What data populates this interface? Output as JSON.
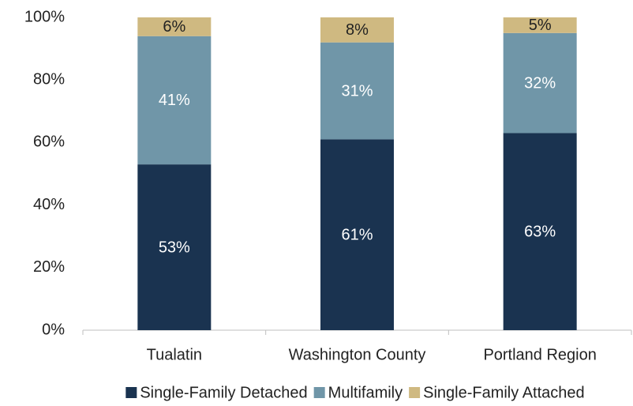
{
  "chart_data": {
    "type": "stacked_bar",
    "categories": [
      "Tualatin",
      "Washington County",
      "Portland Region"
    ],
    "series": [
      {
        "name": "Single-Family Detached",
        "color": "#1a3350",
        "values": [
          53,
          61,
          63
        ],
        "value_labels": [
          "53%",
          "61%",
          "63%"
        ]
      },
      {
        "name": "Multifamily",
        "color": "#7096a8",
        "values": [
          41,
          31,
          32
        ],
        "value_labels": [
          "41%",
          "31%",
          "32%"
        ]
      },
      {
        "name": "Single-Family Attached",
        "color": "#cfb981",
        "values": [
          6,
          8,
          5
        ],
        "value_labels": [
          "6%",
          "8%",
          "5%"
        ]
      }
    ],
    "ylim": [
      0,
      100
    ],
    "yticks": [
      {
        "value": 0,
        "label": "0%"
      },
      {
        "value": 20,
        "label": "20%"
      },
      {
        "value": 40,
        "label": "40%"
      },
      {
        "value": 60,
        "label": "60%"
      },
      {
        "value": 80,
        "label": "80%"
      },
      {
        "value": 100,
        "label": "100%"
      }
    ],
    "grid": false,
    "legend": "bottom"
  }
}
